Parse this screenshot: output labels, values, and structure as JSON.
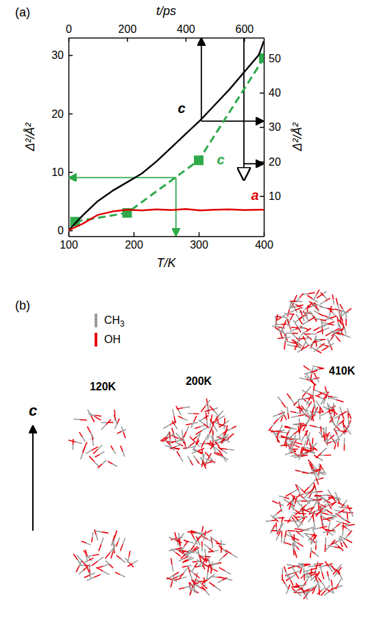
{
  "chart_data": [
    {
      "type": "line",
      "panel_label": "(a)",
      "x_label": "T/K",
      "y_label": "Δ²/Å²",
      "xlim": [
        100,
        400
      ],
      "xticks": [
        100,
        200,
        300,
        400
      ],
      "ylim": [
        -1,
        33
      ],
      "yticks": [
        0,
        10,
        20,
        30
      ],
      "grid": false,
      "series": [
        {
          "name": "c",
          "color": "#2eaa4a",
          "line_style": "dashed",
          "marker": "square",
          "x": [
            110,
            190,
            300,
            400
          ],
          "values": [
            1.5,
            3,
            12,
            29.5
          ]
        }
      ]
    },
    {
      "type": "line",
      "x_label": "t/ps",
      "y_label": "Δ²/Å²",
      "xlim": [
        0,
        667
      ],
      "xticks": [
        0,
        200,
        400,
        600
      ],
      "ylim": [
        -1.7,
        56
      ],
      "yticks": [
        10,
        20,
        30,
        40,
        50
      ],
      "grid": false,
      "series": [
        {
          "name": "c",
          "color": "#000000",
          "line_style": "solid",
          "marker": "none",
          "x": [
            0,
            50,
            100,
            150,
            200,
            250,
            300,
            350,
            400,
            450,
            500,
            550,
            600,
            650,
            667
          ],
          "values": [
            0,
            4.5,
            8.5,
            11.5,
            14,
            16.5,
            20,
            24,
            28,
            32,
            36.5,
            41,
            46,
            51,
            55
          ]
        },
        {
          "name": "a",
          "color": "#e00000",
          "line_style": "solid",
          "marker": "none",
          "x": [
            0,
            50,
            100,
            150,
            200,
            250,
            300,
            350,
            400,
            450,
            500,
            550,
            600,
            650,
            667
          ],
          "values": [
            0,
            2,
            4.5,
            5.5,
            6,
            5.8,
            6.1,
            5.9,
            6.2,
            5.8,
            6,
            6.1,
            5.9,
            6,
            6
          ]
        }
      ]
    }
  ],
  "panel_b": {
    "label": "(b)",
    "key": [
      {
        "label": "CH3",
        "color": "#9a9a9a"
      },
      {
        "label": "OH",
        "color": "#e8000b"
      }
    ],
    "axis_label": "c",
    "snapshots": [
      "120K",
      "200K",
      "410K"
    ]
  }
}
